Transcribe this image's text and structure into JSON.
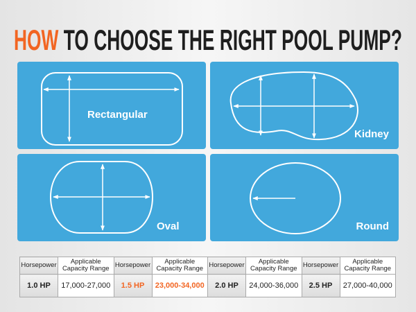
{
  "title": {
    "highlight": "HOW",
    "rest": " TO CHOOSE THE RIGHT POOL PUMP?"
  },
  "colors": {
    "accent": "#f26522",
    "panel": "#42a8dc"
  },
  "shapes": [
    {
      "label": "Rectangular"
    },
    {
      "label": "Kidney"
    },
    {
      "label": "Oval"
    },
    {
      "label": "Round"
    }
  ],
  "table": {
    "header_hp": "Horsepower",
    "header_range": "Applicable Capacity Range",
    "rows": [
      {
        "hp": "1.0 HP",
        "range": "17,000-27,000"
      },
      {
        "hp": "1.5 HP",
        "range": "23,000-34,000",
        "highlighted": true
      },
      {
        "hp": "2.0 HP",
        "range": "24,000-36,000"
      },
      {
        "hp": "2.5 HP",
        "range": "27,000-40,000"
      }
    ]
  }
}
